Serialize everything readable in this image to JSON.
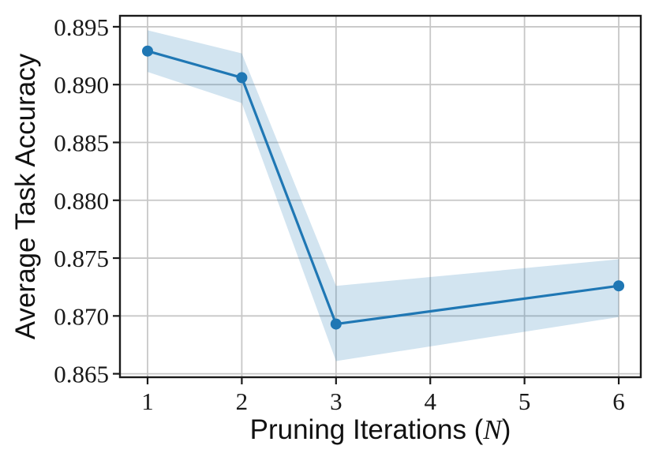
{
  "chart_data": {
    "type": "line",
    "title": "",
    "xlabel_pre": "Pruning Iterations (",
    "xlabel_var": "N",
    "xlabel_post": ")",
    "ylabel": "Average Task Accuracy",
    "x": [
      1,
      2,
      3,
      6
    ],
    "series": [
      {
        "name": "Average Task Accuracy",
        "values": [
          0.8929,
          0.8906,
          0.8693,
          0.8726
        ],
        "band_low": [
          0.8911,
          0.8884,
          0.8661,
          0.8699
        ],
        "band_high": [
          0.8947,
          0.8927,
          0.8726,
          0.8749
        ],
        "color": "#1f77b4",
        "band_color": "rgba(31,119,180,0.2)",
        "marker": "circle",
        "marker_radius": 7,
        "line_width": 3.2
      }
    ],
    "xticks": [
      1,
      2,
      3,
      4,
      5,
      6
    ],
    "yticks": [
      0.865,
      0.87,
      0.875,
      0.88,
      0.885,
      0.89,
      0.895
    ],
    "ytick_decimals": 3,
    "xlim": [
      0.707,
      6.234
    ],
    "ylim": [
      0.8647,
      0.89595
    ],
    "grid": true,
    "grid_color": "#c7c7c7",
    "spine_color": "#1a1a1a",
    "tick_color": "#1a1a1a",
    "legend": false
  }
}
